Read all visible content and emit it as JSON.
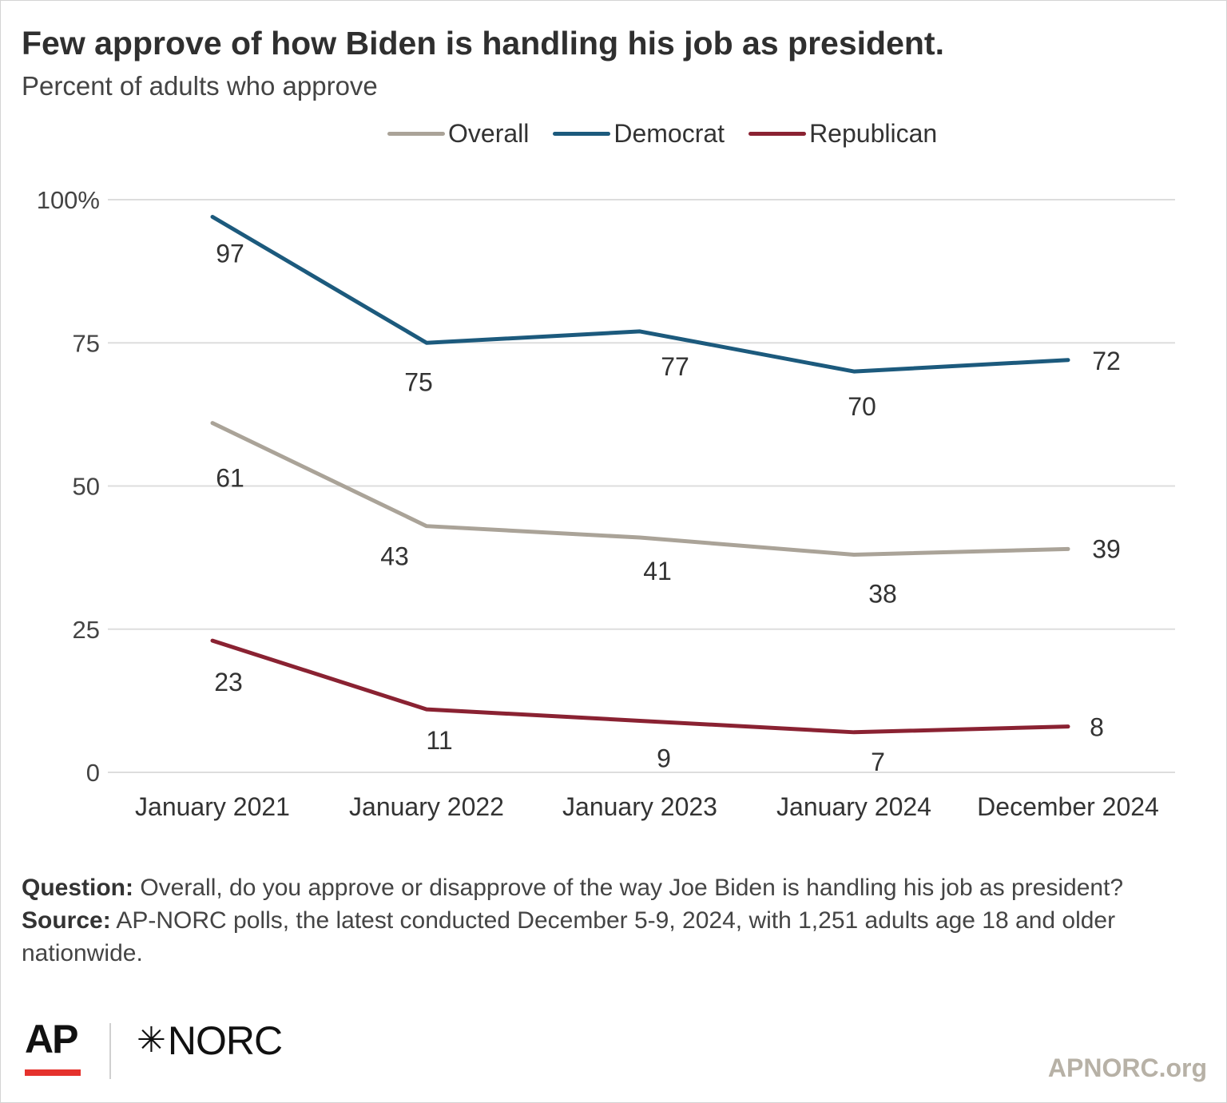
{
  "title": "Few approve of how Biden is handling his job as president.",
  "subtitle": "Percent of adults who approve",
  "chart_data": {
    "type": "line",
    "title": "Few approve of how Biden is handling his job as president.",
    "subtitle": "Percent of adults who approve",
    "categories": [
      "January 2021",
      "January 2022",
      "January 2023",
      "January 2024",
      "December 2024"
    ],
    "y_ticks": [
      "100%",
      "75",
      "50",
      "25",
      "0"
    ],
    "y_tick_values": [
      100,
      75,
      50,
      25,
      0
    ],
    "ylim": [
      0,
      100
    ],
    "grid": true,
    "legend_position": "top-center",
    "series": [
      {
        "name": "Overall",
        "color": "#aaa398",
        "values": [
          61,
          43,
          41,
          38,
          39
        ],
        "labels": [
          "61",
          "43",
          "41",
          "38",
          "39"
        ]
      },
      {
        "name": "Democrat",
        "color": "#1c5a7d",
        "values": [
          97,
          75,
          77,
          70,
          72
        ],
        "labels": [
          "97",
          "75",
          "77",
          "70",
          "72"
        ]
      },
      {
        "name": "Republican",
        "color": "#8a2232",
        "values": [
          23,
          11,
          9,
          7,
          8
        ],
        "labels": [
          "23",
          "11",
          "9",
          "7",
          "8"
        ]
      }
    ]
  },
  "notes": {
    "question_label": "Question:",
    "question_text": " Overall, do you approve or disapprove of the way Joe Biden is handling his job as president?",
    "source_label": "Source:",
    "source_text": " AP-NORC polls, the latest conducted December 5-9, 2024, with 1,251 adults age 18 and older nationwide."
  },
  "logos": {
    "ap": "AP",
    "norc_star": "✳",
    "norc": "NORC"
  },
  "site": "APNORC.org",
  "colors": {
    "ap_red": "#e5322d",
    "grid": "#dddddd",
    "site_text": "#b7b1a6"
  }
}
